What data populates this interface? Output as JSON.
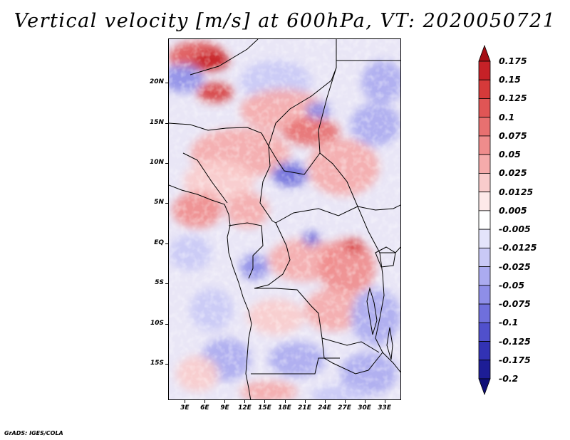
{
  "title": "Vertical velocity [m/s] at 600hPa, VT: 2020050721",
  "credit": "GrADS: IGES/COLA",
  "map": {
    "lon_range": [
      0.5,
      35.5
    ],
    "lat_range": [
      -19.5,
      25.5
    ],
    "lat_labels": [
      {
        "lat": 20,
        "text": "20N"
      },
      {
        "lat": 15,
        "text": "15N"
      },
      {
        "lat": 10,
        "text": "10N"
      },
      {
        "lat": 5,
        "text": "5N"
      },
      {
        "lat": 0,
        "text": "EQ"
      },
      {
        "lat": -5,
        "text": "5S"
      },
      {
        "lat": -10,
        "text": "10S"
      },
      {
        "lat": -15,
        "text": "15S"
      }
    ],
    "lon_labels": [
      {
        "lon": 3,
        "text": "3E"
      },
      {
        "lon": 6,
        "text": "6E"
      },
      {
        "lon": 9,
        "text": "9E"
      },
      {
        "lon": 12,
        "text": "12E"
      },
      {
        "lon": 15,
        "text": "15E"
      },
      {
        "lon": 18,
        "text": "18E"
      },
      {
        "lon": 21,
        "text": "21E"
      },
      {
        "lon": 24,
        "text": "24E"
      },
      {
        "lon": 27,
        "text": "27E"
      },
      {
        "lon": 30,
        "text": "30E"
      },
      {
        "lon": 33,
        "text": "33E"
      }
    ]
  },
  "colorbar": {
    "levels": [
      "0.175",
      "0.15",
      "0.125",
      "0.1",
      "0.075",
      "0.05",
      "0.025",
      "0.0125",
      "0.005",
      "-0.005",
      "-0.0125",
      "-0.025",
      "-0.05",
      "-0.075",
      "-0.1",
      "-0.125",
      "-0.175",
      "-0.2"
    ],
    "colors": [
      "#a50f15",
      "#c62127",
      "#d63a3a",
      "#e05555",
      "#e87070",
      "#ef8c8c",
      "#f5abab",
      "#f9cccc",
      "#fde9e9",
      "#ffffff",
      "#e4e4fb",
      "#c9c9f6",
      "#ababf0",
      "#8e8ee8",
      "#6f6fdc",
      "#5050cc",
      "#3232b4",
      "#1d1d96",
      "#0f0f78"
    ]
  }
}
